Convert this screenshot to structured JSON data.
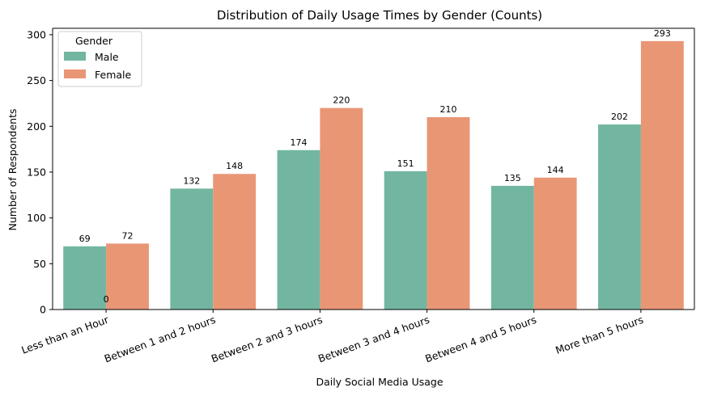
{
  "chart_data": {
    "type": "bar",
    "title": "Distribution of Daily Usage Times by Gender (Counts)",
    "xlabel": "Daily Social Media Usage",
    "ylabel": "Number of Respondents",
    "ylim": [
      0,
      307
    ],
    "yticks": [
      0,
      50,
      100,
      150,
      200,
      250,
      300
    ],
    "categories": [
      "Less than an Hour",
      "Between 1 and 2 hours",
      "Between 2 and 3 hours",
      "Between 3 and 4 hours",
      "Between 4 and 5 hours",
      "More than 5 hours"
    ],
    "series": [
      {
        "name": "Male",
        "color": "#72b6a1",
        "values": [
          69,
          132,
          174,
          151,
          135,
          202
        ]
      },
      {
        "name": "Female",
        "color": "#e99675",
        "values": [
          72,
          148,
          220,
          210,
          144,
          293
        ]
      }
    ],
    "extra_label": "0",
    "legend": {
      "title": "Gender",
      "position": "top-left"
    },
    "grid": false
  }
}
